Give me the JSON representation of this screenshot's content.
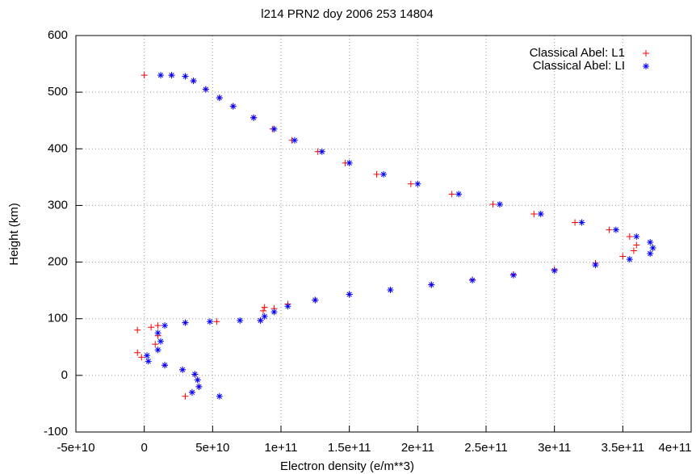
{
  "chart_data": {
    "type": "scatter",
    "title": "l214 PRN2 doy 2006 253 14804",
    "xlabel": "Electron density (e/m**3)",
    "ylabel": "Height (km)",
    "xlim": [
      -50000000000.0,
      400000000000.0
    ],
    "ylim": [
      -100,
      600
    ],
    "xticks": [
      {
        "value": -50000000000.0,
        "label": "-5e+10"
      },
      0,
      {
        "value": 50000000000.0,
        "label": "5e+10"
      },
      {
        "value": 100000000000.0,
        "label": "1e+11"
      },
      {
        "value": 150000000000.0,
        "label": "1.5e+11"
      },
      {
        "value": 200000000000.0,
        "label": "2e+11"
      },
      {
        "value": 250000000000.0,
        "label": "2.5e+11"
      },
      {
        "value": 300000000000.0,
        "label": "3e+11"
      },
      {
        "value": 350000000000.0,
        "label": "3.5e+11"
      },
      {
        "value": 400000000000.0,
        "label": "4e+11"
      }
    ],
    "yticks": [
      -100,
      0,
      100,
      200,
      300,
      400,
      500,
      600
    ],
    "grid": true,
    "legend": "top-right",
    "series": [
      {
        "name": "Classical Abel: L1",
        "color": "#ff0000",
        "marker": "plus",
        "x": [
          0,
          20000000000.0,
          30000000000.0,
          36000000000.0,
          45000000000.0,
          55000000000.0,
          65000000000.0,
          80000000000.0,
          94000000000.0,
          108000000000.0,
          127000000000.0,
          147000000000.0,
          170000000000.0,
          195000000000.0,
          225000000000.0,
          255000000000.0,
          285000000000.0,
          315000000000.0,
          340000000000.0,
          355000000000.0,
          360000000000.0,
          358000000000.0,
          350000000000.0,
          330000000000.0,
          300000000000.0,
          270000000000.0,
          240000000000.0,
          210000000000.0,
          180000000000.0,
          150000000000.0,
          125000000000.0,
          105000000000.0,
          95000000000.0,
          87000000000.0,
          88000000000.0,
          85000000000.0,
          53000000000.0,
          30000000000.0,
          10000000000.0,
          -5000000000.0,
          5000000000.0,
          10000000000.0,
          8000000000.0,
          -5000000000.0,
          -2000000000.0,
          15000000000.0,
          28000000000.0,
          37000000000.0,
          39000000000.0,
          40000000000.0,
          35000000000.0,
          30000000000.0
        ],
        "values": [
          530,
          530,
          528,
          520,
          505,
          490,
          475,
          455,
          435,
          415,
          395,
          375,
          355,
          338,
          320,
          302,
          285,
          270,
          257,
          245,
          230,
          220,
          210,
          198,
          187,
          178,
          169,
          160,
          151,
          143,
          133,
          126,
          118,
          114,
          120,
          97,
          95,
          93,
          88,
          80,
          85,
          70,
          55,
          40,
          32,
          18,
          10,
          2,
          -8,
          -20,
          -30,
          -37
        ]
      },
      {
        "name": "Classical Abel: LI",
        "color": "#0000ff",
        "marker": "star",
        "x": [
          12000000000.0,
          20000000000.0,
          30000000000.0,
          36000000000.0,
          45000000000.0,
          55000000000.0,
          65000000000.0,
          80000000000.0,
          95000000000.0,
          110000000000.0,
          130000000000.0,
          150000000000.0,
          175000000000.0,
          200000000000.0,
          230000000000.0,
          260000000000.0,
          290000000000.0,
          320000000000.0,
          345000000000.0,
          360000000000.0,
          370000000000.0,
          372000000000.0,
          370000000000.0,
          355000000000.0,
          330000000000.0,
          300000000000.0,
          270000000000.0,
          240000000000.0,
          210000000000.0,
          180000000000.0,
          150000000000.0,
          125000000000.0,
          105000000000.0,
          95000000000.0,
          88000000000.0,
          85000000000.0,
          70000000000.0,
          48000000000.0,
          30000000000.0,
          15000000000.0,
          10000000000.0,
          12000000000.0,
          10000000000.0,
          2000000000.0,
          3000000000.0,
          15000000000.0,
          28000000000.0,
          37000000000.0,
          39000000000.0,
          40000000000.0,
          35000000000.0,
          55000000000.0
        ],
        "values": [
          530,
          530,
          528,
          520,
          505,
          490,
          475,
          455,
          435,
          415,
          395,
          375,
          355,
          338,
          320,
          302,
          285,
          270,
          257,
          245,
          235,
          225,
          215,
          205,
          195,
          185,
          177,
          168,
          160,
          151,
          143,
          133,
          122,
          112,
          104,
          97,
          97,
          95,
          93,
          88,
          75,
          60,
          45,
          35,
          25,
          18,
          10,
          2,
          -8,
          -20,
          -30,
          -37
        ]
      }
    ]
  }
}
